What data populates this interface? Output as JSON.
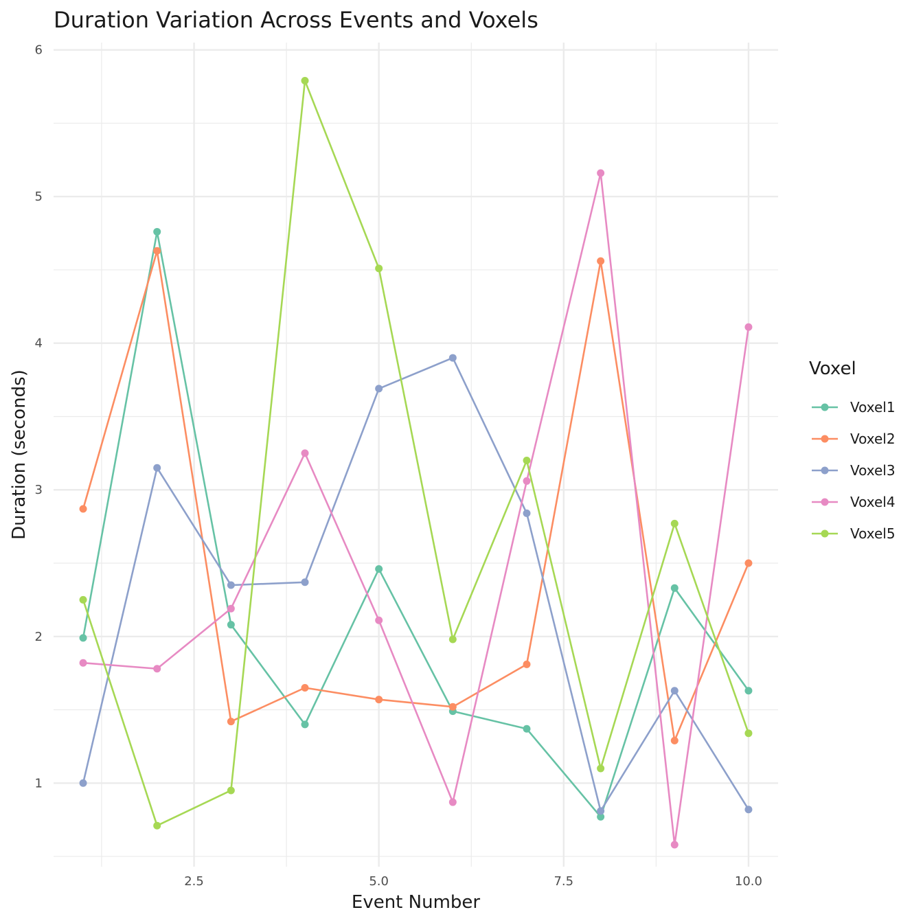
{
  "chart_data": {
    "type": "line",
    "title": "Duration Variation Across Events and Voxels",
    "xlabel": "Event Number",
    "ylabel": "Duration (seconds)",
    "xlim": [
      0.6,
      10.4
    ],
    "ylim": [
      0.43,
      6.05
    ],
    "x_ticks": [
      2.5,
      5.0,
      7.5,
      10.0
    ],
    "x_tick_labels": [
      "2.5",
      "5.0",
      "7.5",
      "10.0"
    ],
    "y_ticks": [
      1,
      2,
      3,
      4,
      5,
      6
    ],
    "y_tick_labels": [
      "1",
      "2",
      "3",
      "4",
      "5",
      "6"
    ],
    "grid": true,
    "legend_title": "Voxel",
    "legend_position": "right",
    "x": [
      1,
      2,
      3,
      4,
      5,
      6,
      7,
      8,
      9,
      10
    ],
    "series": [
      {
        "name": "Voxel1",
        "color": "#66C2A5",
        "values": [
          1.99,
          4.76,
          2.08,
          1.4,
          2.46,
          1.49,
          1.37,
          0.77,
          2.33,
          1.63
        ]
      },
      {
        "name": "Voxel2",
        "color": "#FC8D62",
        "values": [
          2.87,
          4.63,
          1.42,
          1.65,
          1.57,
          1.52,
          1.81,
          4.56,
          1.29,
          2.5
        ]
      },
      {
        "name": "Voxel3",
        "color": "#8DA0CB",
        "values": [
          1.0,
          3.15,
          2.35,
          2.37,
          3.69,
          3.9,
          2.84,
          0.81,
          1.63,
          0.82
        ]
      },
      {
        "name": "Voxel4",
        "color": "#E78AC3",
        "values": [
          1.82,
          1.78,
          2.19,
          3.25,
          2.11,
          0.87,
          3.06,
          5.16,
          0.58,
          4.11
        ]
      },
      {
        "name": "Voxel5",
        "color": "#A6D854",
        "values": [
          2.25,
          0.71,
          0.95,
          5.79,
          4.51,
          1.98,
          3.2,
          1.1,
          2.77,
          1.34
        ]
      }
    ]
  }
}
